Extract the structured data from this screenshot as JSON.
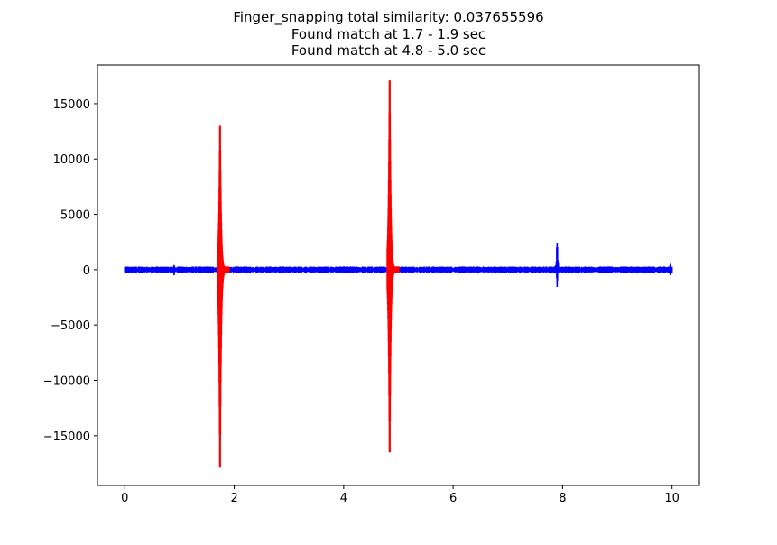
{
  "chart_data": {
    "type": "line",
    "title_lines": [
      "Finger_snapping total similarity: 0.037655596",
      "Found match at 1.7 - 1.9 sec",
      "Found match at 4.8 - 5.0 sec"
    ],
    "xlabel": "",
    "ylabel": "",
    "xlim": [
      -0.5,
      10.5
    ],
    "ylim": [
      -19500,
      18500
    ],
    "x_ticks": [
      0,
      2,
      4,
      6,
      8,
      10
    ],
    "x_tick_labels": [
      "0",
      "2",
      "4",
      "6",
      "8",
      "10"
    ],
    "y_ticks": [
      -15000,
      -10000,
      -5000,
      0,
      5000,
      10000,
      15000
    ],
    "y_tick_labels": [
      "−15000",
      "−10000",
      "−5000",
      "0",
      "5000",
      "10000",
      "15000"
    ],
    "grid": false,
    "colors": {
      "signal": "#0000ff",
      "match": "#ff0000",
      "axes": "#000000"
    },
    "series": [
      {
        "color": "#0000ff",
        "x_range": [
          0.0,
          10.0
        ],
        "baseline_amplitude": 250,
        "bursts": [
          {
            "x": 0.9,
            "min": -700,
            "max": 650
          },
          {
            "x": 7.9,
            "min": -1800,
            "max": 4000
          },
          {
            "x": 9.97,
            "min": -800,
            "max": 800
          }
        ]
      },
      {
        "color": "#ff0000",
        "segments": [
          {
            "x_start": 1.7,
            "x_end": 1.9,
            "peak_x": 1.74,
            "min": -17900,
            "max": 13000
          },
          {
            "x_start": 4.8,
            "x_end": 5.0,
            "peak_x": 4.84,
            "min": -16500,
            "max": 17100
          }
        ]
      }
    ]
  }
}
